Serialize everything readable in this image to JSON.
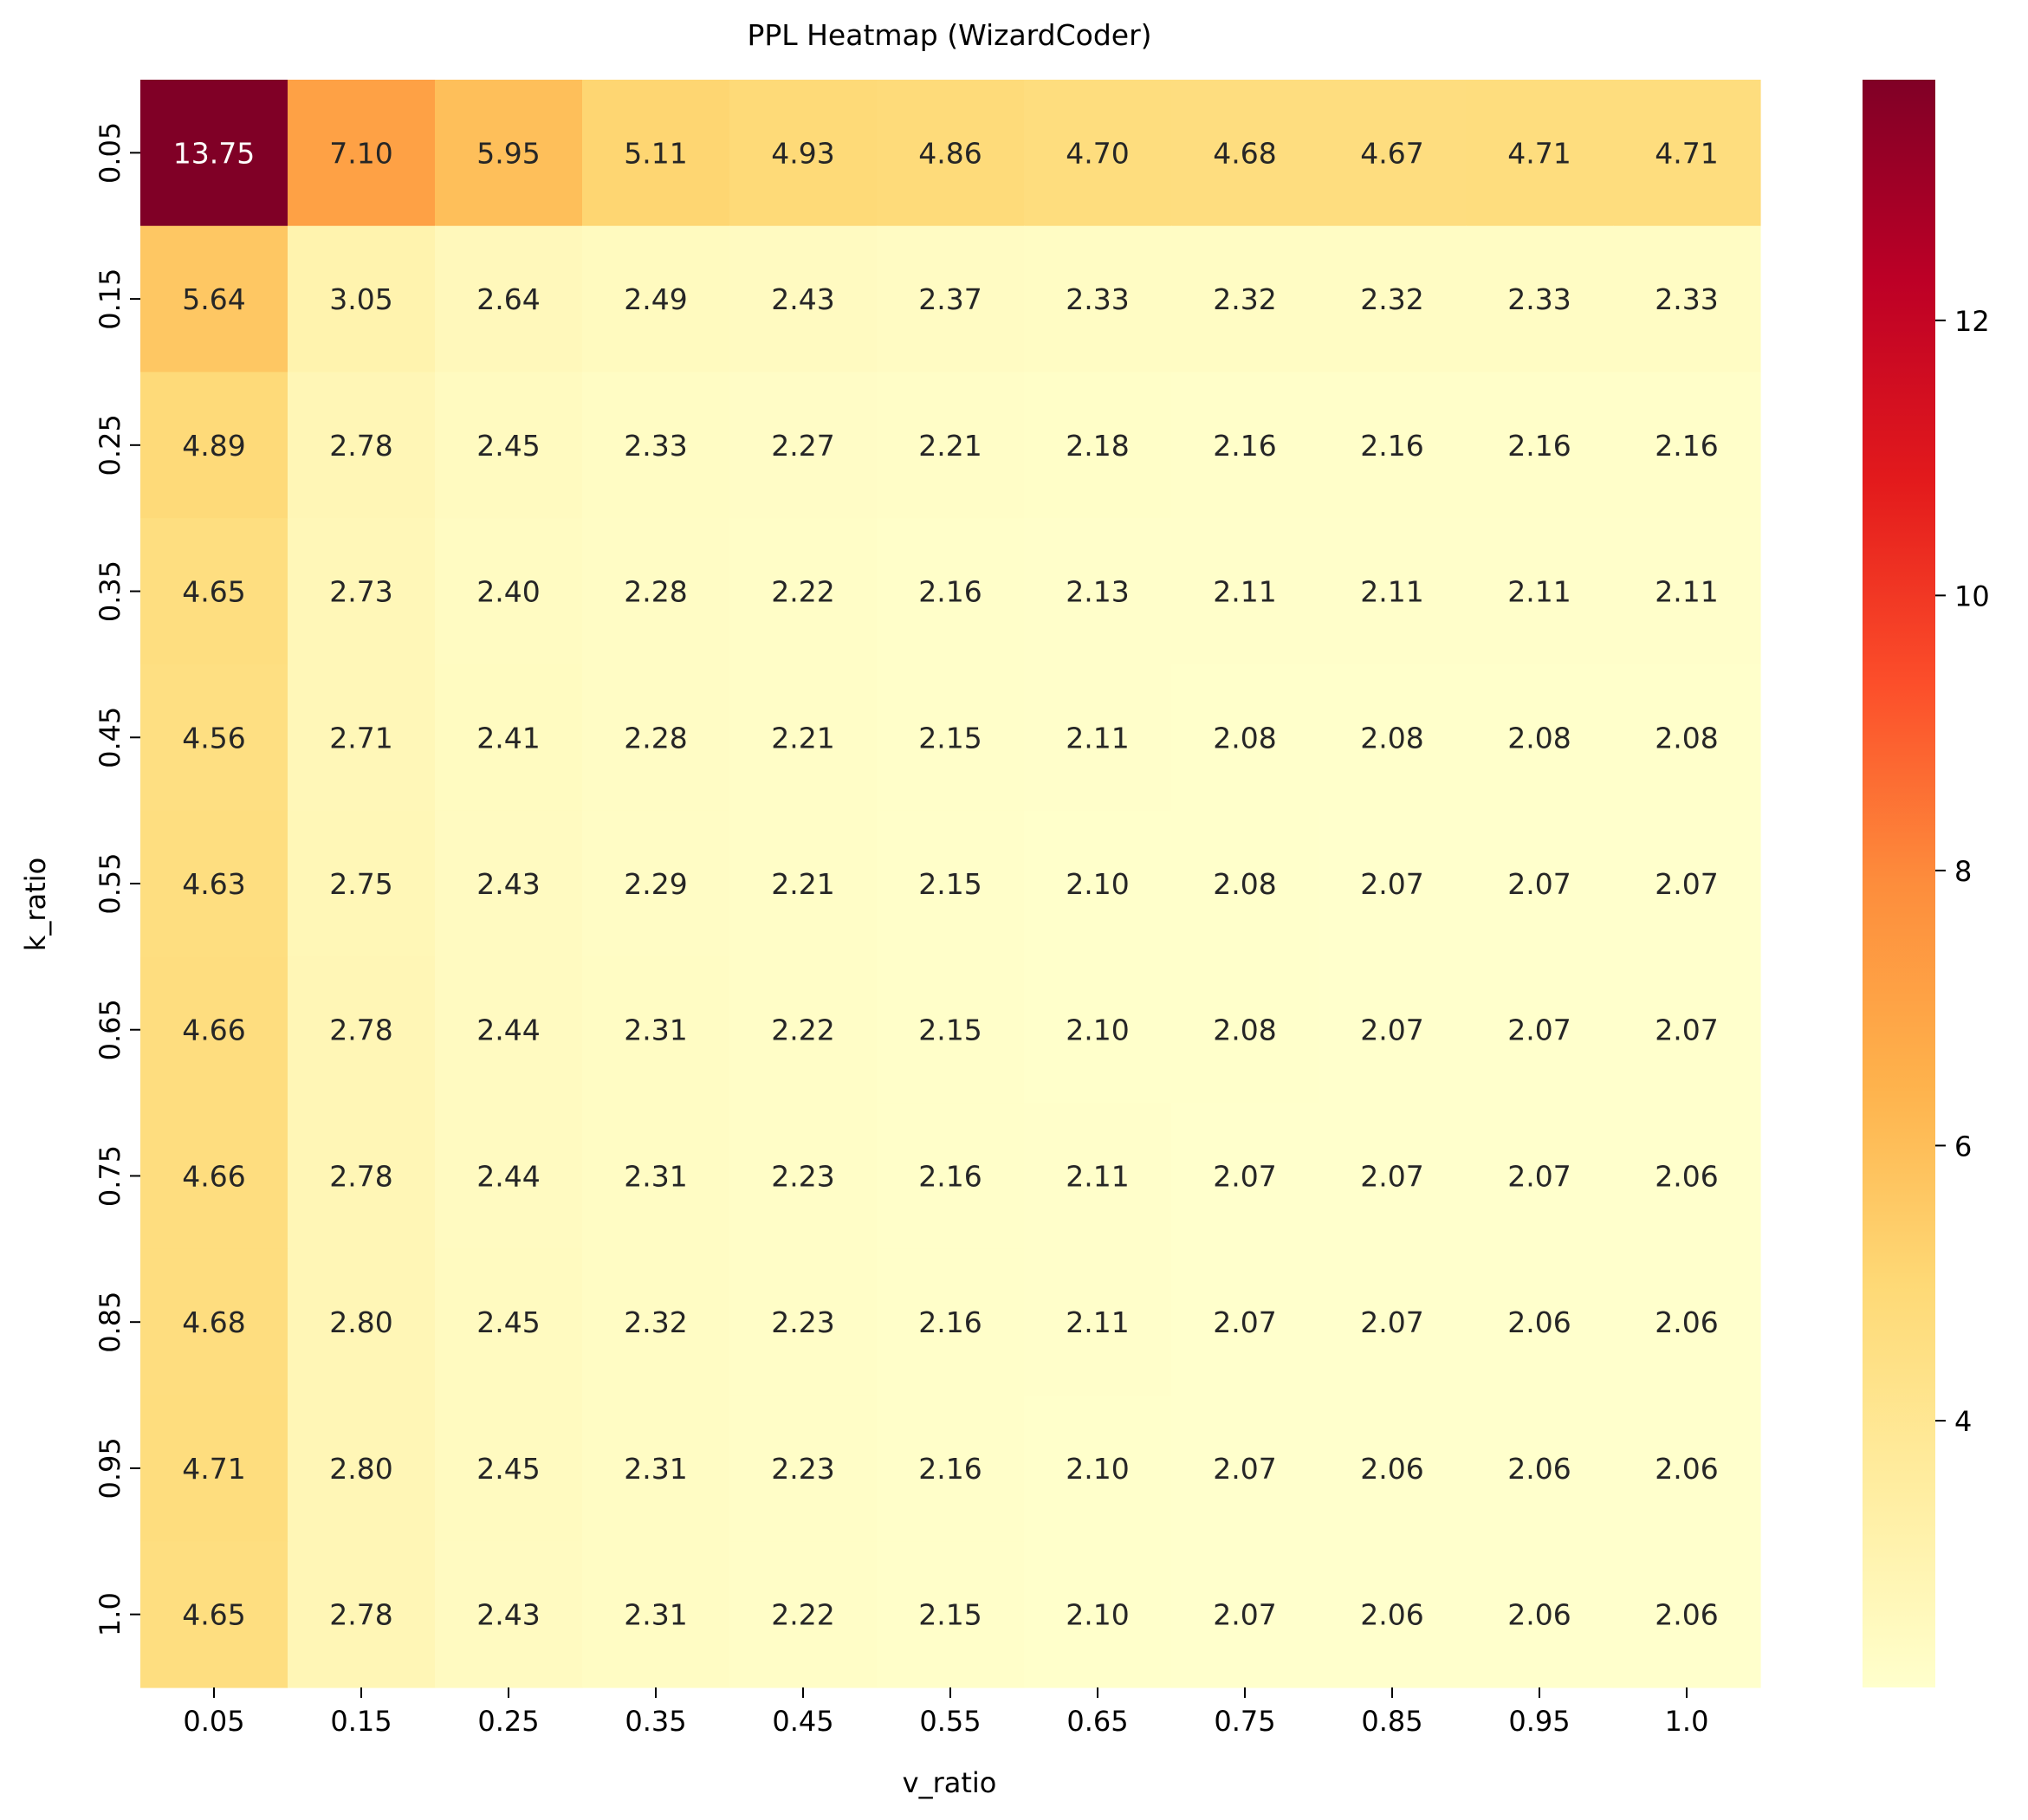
{
  "chart_data": {
    "type": "heatmap",
    "title": "PPL Heatmap (WizardCoder)",
    "xlabel": "v_ratio",
    "ylabel": "k_ratio",
    "x_categories": [
      "0.05",
      "0.15",
      "0.25",
      "0.35",
      "0.45",
      "0.55",
      "0.65",
      "0.75",
      "0.85",
      "0.95",
      "1.0"
    ],
    "y_categories": [
      "0.05",
      "0.15",
      "0.25",
      "0.35",
      "0.45",
      "0.55",
      "0.65",
      "0.75",
      "0.85",
      "0.95",
      "1.0"
    ],
    "values": [
      [
        13.75,
        7.1,
        5.95,
        5.11,
        4.93,
        4.86,
        4.7,
        4.68,
        4.67,
        4.71,
        4.71
      ],
      [
        5.64,
        3.05,
        2.64,
        2.49,
        2.43,
        2.37,
        2.33,
        2.32,
        2.32,
        2.33,
        2.33
      ],
      [
        4.89,
        2.78,
        2.45,
        2.33,
        2.27,
        2.21,
        2.18,
        2.16,
        2.16,
        2.16,
        2.16
      ],
      [
        4.65,
        2.73,
        2.4,
        2.28,
        2.22,
        2.16,
        2.13,
        2.11,
        2.11,
        2.11,
        2.11
      ],
      [
        4.56,
        2.71,
        2.41,
        2.28,
        2.21,
        2.15,
        2.11,
        2.08,
        2.08,
        2.08,
        2.08
      ],
      [
        4.63,
        2.75,
        2.43,
        2.29,
        2.21,
        2.15,
        2.1,
        2.08,
        2.07,
        2.07,
        2.07
      ],
      [
        4.66,
        2.78,
        2.44,
        2.31,
        2.22,
        2.15,
        2.1,
        2.08,
        2.07,
        2.07,
        2.07
      ],
      [
        4.66,
        2.78,
        2.44,
        2.31,
        2.23,
        2.16,
        2.11,
        2.07,
        2.07,
        2.07,
        2.06
      ],
      [
        4.68,
        2.8,
        2.45,
        2.32,
        2.23,
        2.16,
        2.11,
        2.07,
        2.07,
        2.06,
        2.06
      ],
      [
        4.71,
        2.8,
        2.45,
        2.31,
        2.23,
        2.16,
        2.1,
        2.07,
        2.06,
        2.06,
        2.06
      ],
      [
        4.65,
        2.78,
        2.43,
        2.31,
        2.22,
        2.15,
        2.1,
        2.07,
        2.06,
        2.06,
        2.06
      ]
    ],
    "value_format": "2 decimals",
    "colormap": "YlOrRd",
    "colormap_stops": [
      "#ffffcc",
      "#ffeda0",
      "#fed976",
      "#feb24c",
      "#fd8d3c",
      "#fc4e2a",
      "#e31a1c",
      "#bd0026",
      "#800026"
    ],
    "colorbar": {
      "vmin": 2.06,
      "vmax": 13.75,
      "ticks": [
        4,
        6,
        8,
        10,
        12
      ],
      "tick_labels": [
        "4",
        "6",
        "8",
        "10",
        "12"
      ]
    },
    "grid": false,
    "legend": "colorbar-right"
  }
}
